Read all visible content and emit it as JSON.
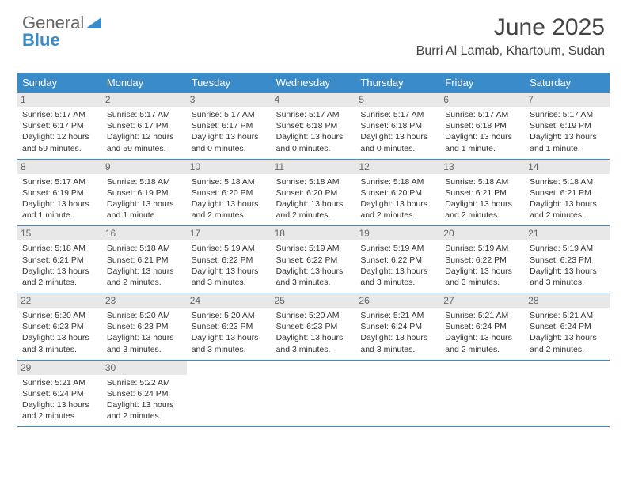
{
  "logo": {
    "line1": "General",
    "line2": "Blue"
  },
  "title": "June 2025",
  "location": "Burri Al Lamab, Khartoum, Sudan",
  "day_headers": [
    "Sunday",
    "Monday",
    "Tuesday",
    "Wednesday",
    "Thursday",
    "Friday",
    "Saturday"
  ],
  "colors": {
    "header_bg": "#3a8bc9",
    "header_text": "#ffffff",
    "date_bg": "#e8e8e8",
    "border": "#3a8bc9",
    "logo_blue": "#3a8bc9"
  },
  "weeks": [
    [
      {
        "date": "1",
        "sunrise": "Sunrise: 5:17 AM",
        "sunset": "Sunset: 6:17 PM",
        "daylight1": "Daylight: 12 hours",
        "daylight2": "and 59 minutes."
      },
      {
        "date": "2",
        "sunrise": "Sunrise: 5:17 AM",
        "sunset": "Sunset: 6:17 PM",
        "daylight1": "Daylight: 12 hours",
        "daylight2": "and 59 minutes."
      },
      {
        "date": "3",
        "sunrise": "Sunrise: 5:17 AM",
        "sunset": "Sunset: 6:17 PM",
        "daylight1": "Daylight: 13 hours",
        "daylight2": "and 0 minutes."
      },
      {
        "date": "4",
        "sunrise": "Sunrise: 5:17 AM",
        "sunset": "Sunset: 6:18 PM",
        "daylight1": "Daylight: 13 hours",
        "daylight2": "and 0 minutes."
      },
      {
        "date": "5",
        "sunrise": "Sunrise: 5:17 AM",
        "sunset": "Sunset: 6:18 PM",
        "daylight1": "Daylight: 13 hours",
        "daylight2": "and 0 minutes."
      },
      {
        "date": "6",
        "sunrise": "Sunrise: 5:17 AM",
        "sunset": "Sunset: 6:18 PM",
        "daylight1": "Daylight: 13 hours",
        "daylight2": "and 1 minute."
      },
      {
        "date": "7",
        "sunrise": "Sunrise: 5:17 AM",
        "sunset": "Sunset: 6:19 PM",
        "daylight1": "Daylight: 13 hours",
        "daylight2": "and 1 minute."
      }
    ],
    [
      {
        "date": "8",
        "sunrise": "Sunrise: 5:17 AM",
        "sunset": "Sunset: 6:19 PM",
        "daylight1": "Daylight: 13 hours",
        "daylight2": "and 1 minute."
      },
      {
        "date": "9",
        "sunrise": "Sunrise: 5:18 AM",
        "sunset": "Sunset: 6:19 PM",
        "daylight1": "Daylight: 13 hours",
        "daylight2": "and 1 minute."
      },
      {
        "date": "10",
        "sunrise": "Sunrise: 5:18 AM",
        "sunset": "Sunset: 6:20 PM",
        "daylight1": "Daylight: 13 hours",
        "daylight2": "and 2 minutes."
      },
      {
        "date": "11",
        "sunrise": "Sunrise: 5:18 AM",
        "sunset": "Sunset: 6:20 PM",
        "daylight1": "Daylight: 13 hours",
        "daylight2": "and 2 minutes."
      },
      {
        "date": "12",
        "sunrise": "Sunrise: 5:18 AM",
        "sunset": "Sunset: 6:20 PM",
        "daylight1": "Daylight: 13 hours",
        "daylight2": "and 2 minutes."
      },
      {
        "date": "13",
        "sunrise": "Sunrise: 5:18 AM",
        "sunset": "Sunset: 6:21 PM",
        "daylight1": "Daylight: 13 hours",
        "daylight2": "and 2 minutes."
      },
      {
        "date": "14",
        "sunrise": "Sunrise: 5:18 AM",
        "sunset": "Sunset: 6:21 PM",
        "daylight1": "Daylight: 13 hours",
        "daylight2": "and 2 minutes."
      }
    ],
    [
      {
        "date": "15",
        "sunrise": "Sunrise: 5:18 AM",
        "sunset": "Sunset: 6:21 PM",
        "daylight1": "Daylight: 13 hours",
        "daylight2": "and 2 minutes."
      },
      {
        "date": "16",
        "sunrise": "Sunrise: 5:18 AM",
        "sunset": "Sunset: 6:21 PM",
        "daylight1": "Daylight: 13 hours",
        "daylight2": "and 2 minutes."
      },
      {
        "date": "17",
        "sunrise": "Sunrise: 5:19 AM",
        "sunset": "Sunset: 6:22 PM",
        "daylight1": "Daylight: 13 hours",
        "daylight2": "and 3 minutes."
      },
      {
        "date": "18",
        "sunrise": "Sunrise: 5:19 AM",
        "sunset": "Sunset: 6:22 PM",
        "daylight1": "Daylight: 13 hours",
        "daylight2": "and 3 minutes."
      },
      {
        "date": "19",
        "sunrise": "Sunrise: 5:19 AM",
        "sunset": "Sunset: 6:22 PM",
        "daylight1": "Daylight: 13 hours",
        "daylight2": "and 3 minutes."
      },
      {
        "date": "20",
        "sunrise": "Sunrise: 5:19 AM",
        "sunset": "Sunset: 6:22 PM",
        "daylight1": "Daylight: 13 hours",
        "daylight2": "and 3 minutes."
      },
      {
        "date": "21",
        "sunrise": "Sunrise: 5:19 AM",
        "sunset": "Sunset: 6:23 PM",
        "daylight1": "Daylight: 13 hours",
        "daylight2": "and 3 minutes."
      }
    ],
    [
      {
        "date": "22",
        "sunrise": "Sunrise: 5:20 AM",
        "sunset": "Sunset: 6:23 PM",
        "daylight1": "Daylight: 13 hours",
        "daylight2": "and 3 minutes."
      },
      {
        "date": "23",
        "sunrise": "Sunrise: 5:20 AM",
        "sunset": "Sunset: 6:23 PM",
        "daylight1": "Daylight: 13 hours",
        "daylight2": "and 3 minutes."
      },
      {
        "date": "24",
        "sunrise": "Sunrise: 5:20 AM",
        "sunset": "Sunset: 6:23 PM",
        "daylight1": "Daylight: 13 hours",
        "daylight2": "and 3 minutes."
      },
      {
        "date": "25",
        "sunrise": "Sunrise: 5:20 AM",
        "sunset": "Sunset: 6:23 PM",
        "daylight1": "Daylight: 13 hours",
        "daylight2": "and 3 minutes."
      },
      {
        "date": "26",
        "sunrise": "Sunrise: 5:21 AM",
        "sunset": "Sunset: 6:24 PM",
        "daylight1": "Daylight: 13 hours",
        "daylight2": "and 3 minutes."
      },
      {
        "date": "27",
        "sunrise": "Sunrise: 5:21 AM",
        "sunset": "Sunset: 6:24 PM",
        "daylight1": "Daylight: 13 hours",
        "daylight2": "and 2 minutes."
      },
      {
        "date": "28",
        "sunrise": "Sunrise: 5:21 AM",
        "sunset": "Sunset: 6:24 PM",
        "daylight1": "Daylight: 13 hours",
        "daylight2": "and 2 minutes."
      }
    ],
    [
      {
        "date": "29",
        "sunrise": "Sunrise: 5:21 AM",
        "sunset": "Sunset: 6:24 PM",
        "daylight1": "Daylight: 13 hours",
        "daylight2": "and 2 minutes."
      },
      {
        "date": "30",
        "sunrise": "Sunrise: 5:22 AM",
        "sunset": "Sunset: 6:24 PM",
        "daylight1": "Daylight: 13 hours",
        "daylight2": "and 2 minutes."
      },
      null,
      null,
      null,
      null,
      null
    ]
  ]
}
